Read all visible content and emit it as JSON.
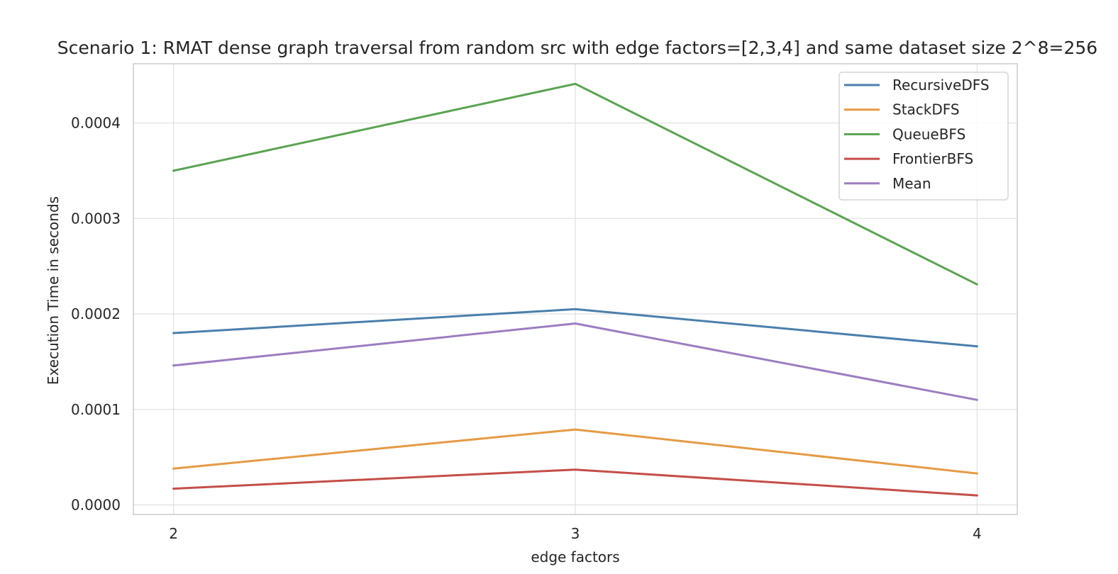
{
  "chart_data": {
    "type": "line",
    "title": "Scenario 1: RMAT dense graph traversal from random src with edge factors=[2,3,4] and same dataset size 2^8=256",
    "xlabel": "edge factors",
    "ylabel": "Execution Time in seconds",
    "x": [
      2,
      3,
      4
    ],
    "x_tick_labels": [
      "2",
      "3",
      "4"
    ],
    "y_ticks": [
      0.0,
      0.0001,
      0.0002,
      0.0003,
      0.0004
    ],
    "y_tick_labels": [
      "0.0000",
      "0.0001",
      "0.0002",
      "0.0003",
      "0.0004"
    ],
    "xlim": [
      1.9,
      4.1
    ],
    "ylim": [
      -1e-05,
      0.000462
    ],
    "grid": true,
    "legend_position": "top-right",
    "series": [
      {
        "name": "RecursiveDFS",
        "color": "#4a7fac",
        "values": [
          0.00018,
          0.000205,
          0.000166
        ]
      },
      {
        "name": "StackDFS",
        "color": "#e59a45",
        "values": [
          3.8e-05,
          7.9e-05,
          3.3e-05
        ]
      },
      {
        "name": "QueueBFS",
        "color": "#5aa352",
        "values": [
          0.00035,
          0.000441,
          0.000231
        ]
      },
      {
        "name": "FrontierBFS",
        "color": "#c44e47",
        "values": [
          1.7e-05,
          3.7e-05,
          1e-05
        ]
      },
      {
        "name": "Mean",
        "color": "#9c7dc0",
        "values": [
          0.000146,
          0.00019,
          0.00011
        ]
      }
    ]
  }
}
